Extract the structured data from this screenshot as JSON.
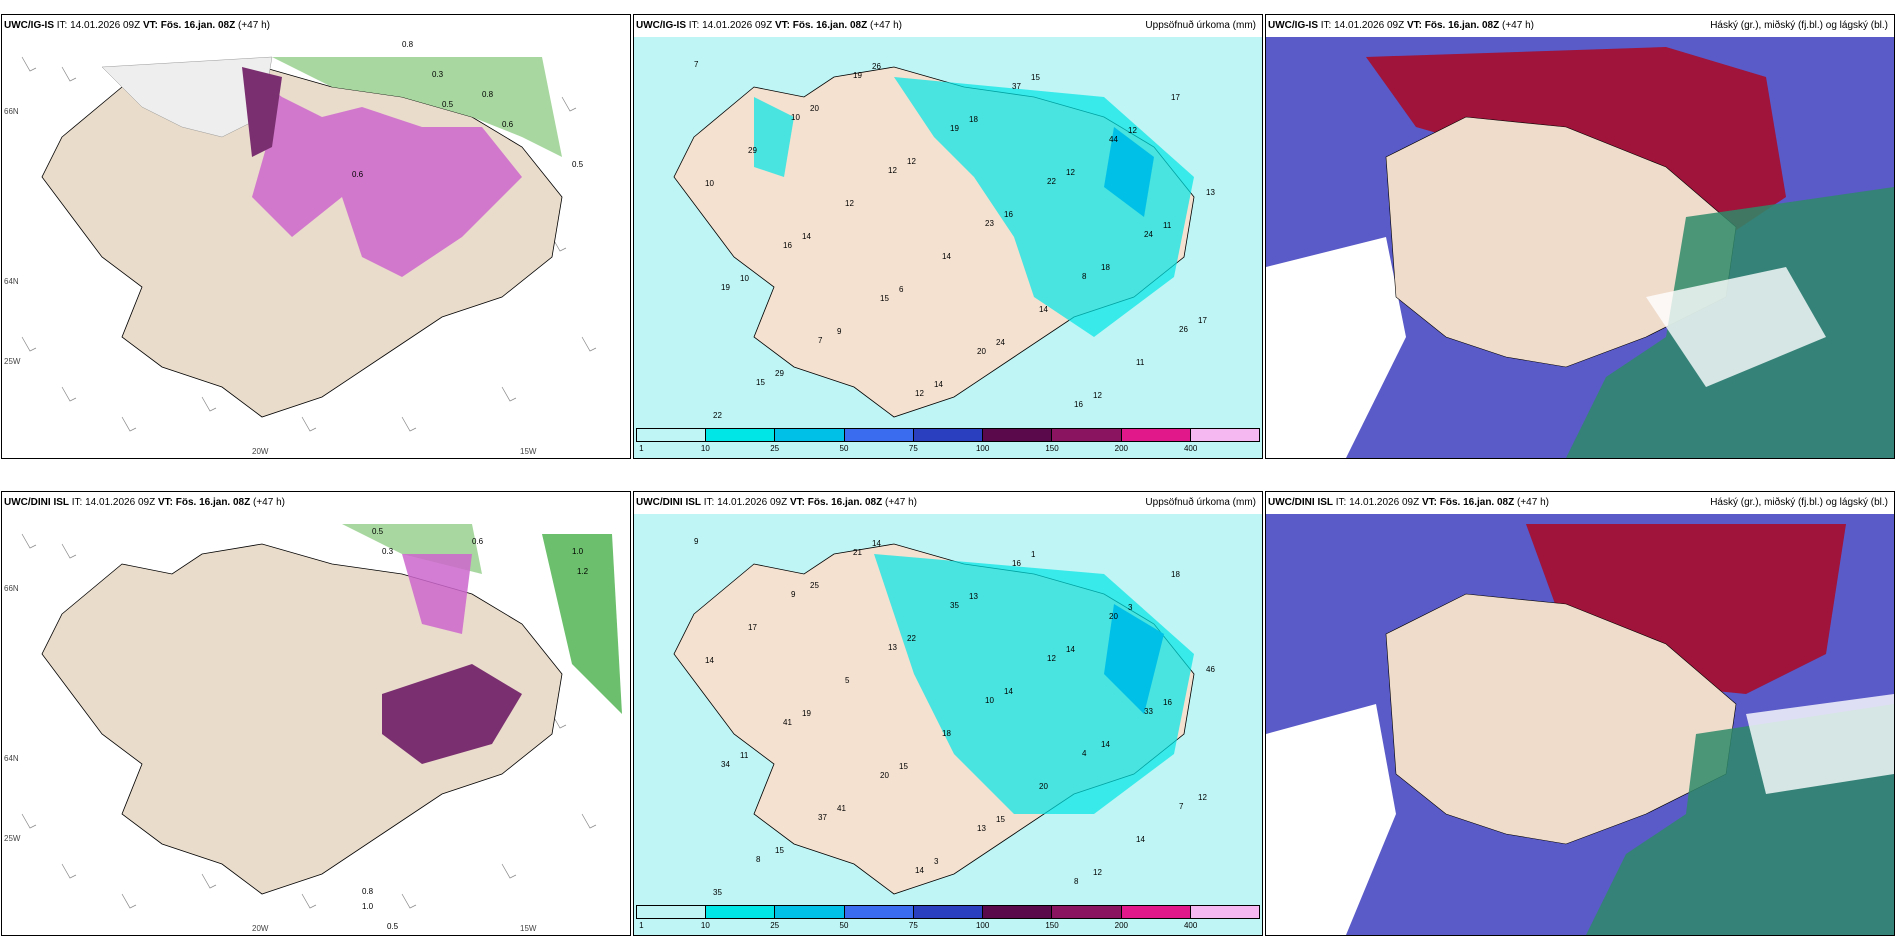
{
  "colorbar": {
    "ticks": [
      "1",
      "10",
      "25",
      "50",
      "75",
      "100",
      "150",
      "200",
      "400"
    ],
    "colors": [
      "#bff5f5",
      "#00e6e6",
      "#00c0e8",
      "#3a6cf0",
      "#2a3fc0",
      "#5a0a4a",
      "#8a1460",
      "#e0188a",
      "#f5b8f0"
    ]
  },
  "rows": [
    {
      "model": "UWC/IG-IS",
      "it_label": "IT:",
      "it_value": "14.01.2026 09Z",
      "vt_label": "VT:",
      "vt_value": "Fös. 16.jan. 08Z",
      "lead": "(+47 h)",
      "precip_title": "Uppsöfnuð úrkoma (mm)",
      "cloud_title": "Háský (gr.), miðský (fj.bl.) og lágský (bl.)",
      "lat_labels": [
        "66N",
        "64N",
        "25W"
      ],
      "lon_labels": [
        "20W",
        "15W"
      ],
      "wind_values": [
        "0.8",
        "0.3",
        "0.5",
        "0.8",
        "0.6",
        "0.5",
        "0.6"
      ],
      "precip_values": [
        "7",
        "10",
        "12",
        "23",
        "8",
        "26",
        "15",
        "19",
        "19",
        "22",
        "24",
        "19",
        "7",
        "12",
        "37",
        "44",
        "13",
        "16",
        "15",
        "20",
        "16",
        "17",
        "29",
        "12",
        "14",
        "14",
        "11",
        "22",
        "20",
        "12",
        "16",
        "18",
        "17",
        "29",
        "26",
        "18",
        "12",
        "11",
        "10",
        "9",
        "14",
        "15",
        "12",
        "10",
        "14",
        "6",
        "24",
        "12"
      ]
    },
    {
      "model": "UWC/DINI ISL",
      "it_label": "IT:",
      "it_value": "14.01.2026 09Z",
      "vt_label": "VT:",
      "vt_value": "Fös. 16.jan. 08Z",
      "lead": "(+47 h)",
      "precip_title": "Uppsöfnuð úrkoma (mm)",
      "cloud_title": "Háský (gr.), miðský (fj.bl.) og lágský (bl.)",
      "lat_labels": [
        "66N",
        "64N",
        "25W"
      ],
      "lon_labels": [
        "20W",
        "15W"
      ],
      "wind_values": [
        "0.5",
        "0.3",
        "0.6",
        "1.0",
        "1.2",
        "0.8",
        "1.0",
        "0.5"
      ],
      "precip_values": [
        "9",
        "9",
        "13",
        "10",
        "4",
        "7",
        "8",
        "21",
        "35",
        "12",
        "33",
        "34",
        "37",
        "14",
        "16",
        "20",
        "46",
        "41",
        "20",
        "13",
        "8",
        "18",
        "17",
        "5",
        "18",
        "20",
        "14",
        "35",
        "25",
        "22",
        "14",
        "14",
        "12",
        "15",
        "14",
        "13",
        "14",
        "16",
        "11",
        "41",
        "3",
        "1",
        "3",
        "14",
        "19",
        "15",
        "15",
        "12"
      ]
    }
  ]
}
